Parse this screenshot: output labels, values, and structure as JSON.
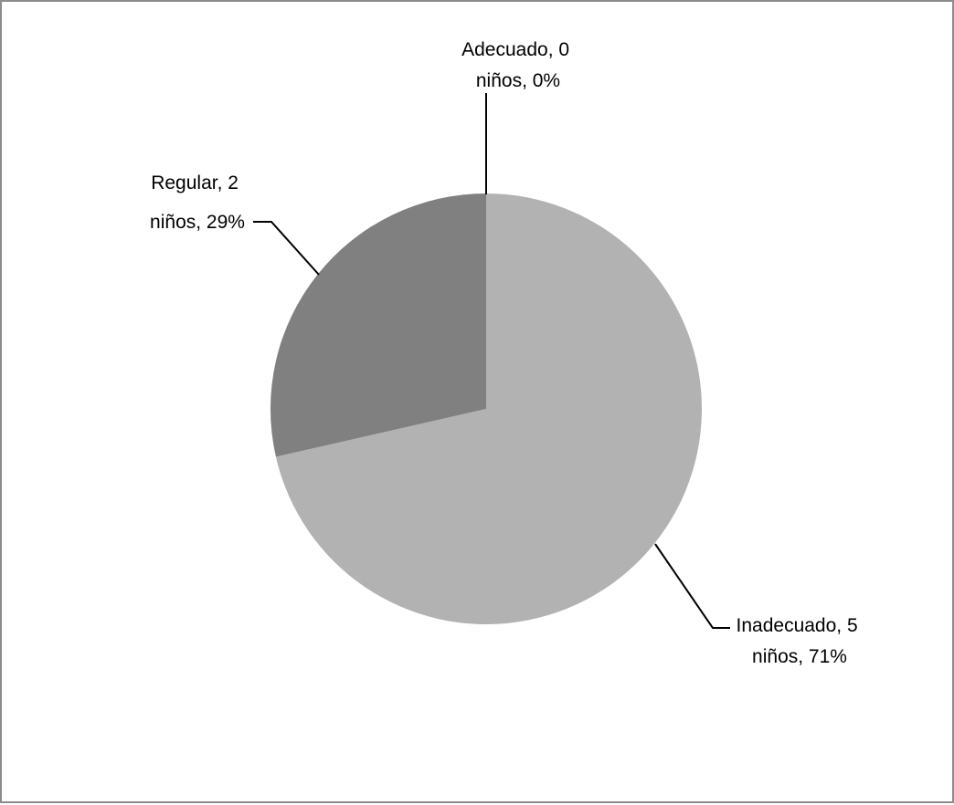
{
  "chart_data": {
    "type": "pie",
    "categories": [
      "Inadecuado",
      "Regular",
      "Adecuado"
    ],
    "values": [
      5,
      2,
      0
    ],
    "percentages": [
      71,
      29,
      0
    ],
    "colors": [
      "#b2b2b2",
      "#808080",
      "#d9d9d9"
    ],
    "labels": [
      {
        "line1": "Inadecuado, 5",
        "line2": "niños, 71%"
      },
      {
        "line1": "Regular, 2",
        "line2": "niños, 29%"
      },
      {
        "line1": "Adecuado, 0",
        "line2": "niños, 0%"
      }
    ],
    "legend": "none"
  }
}
